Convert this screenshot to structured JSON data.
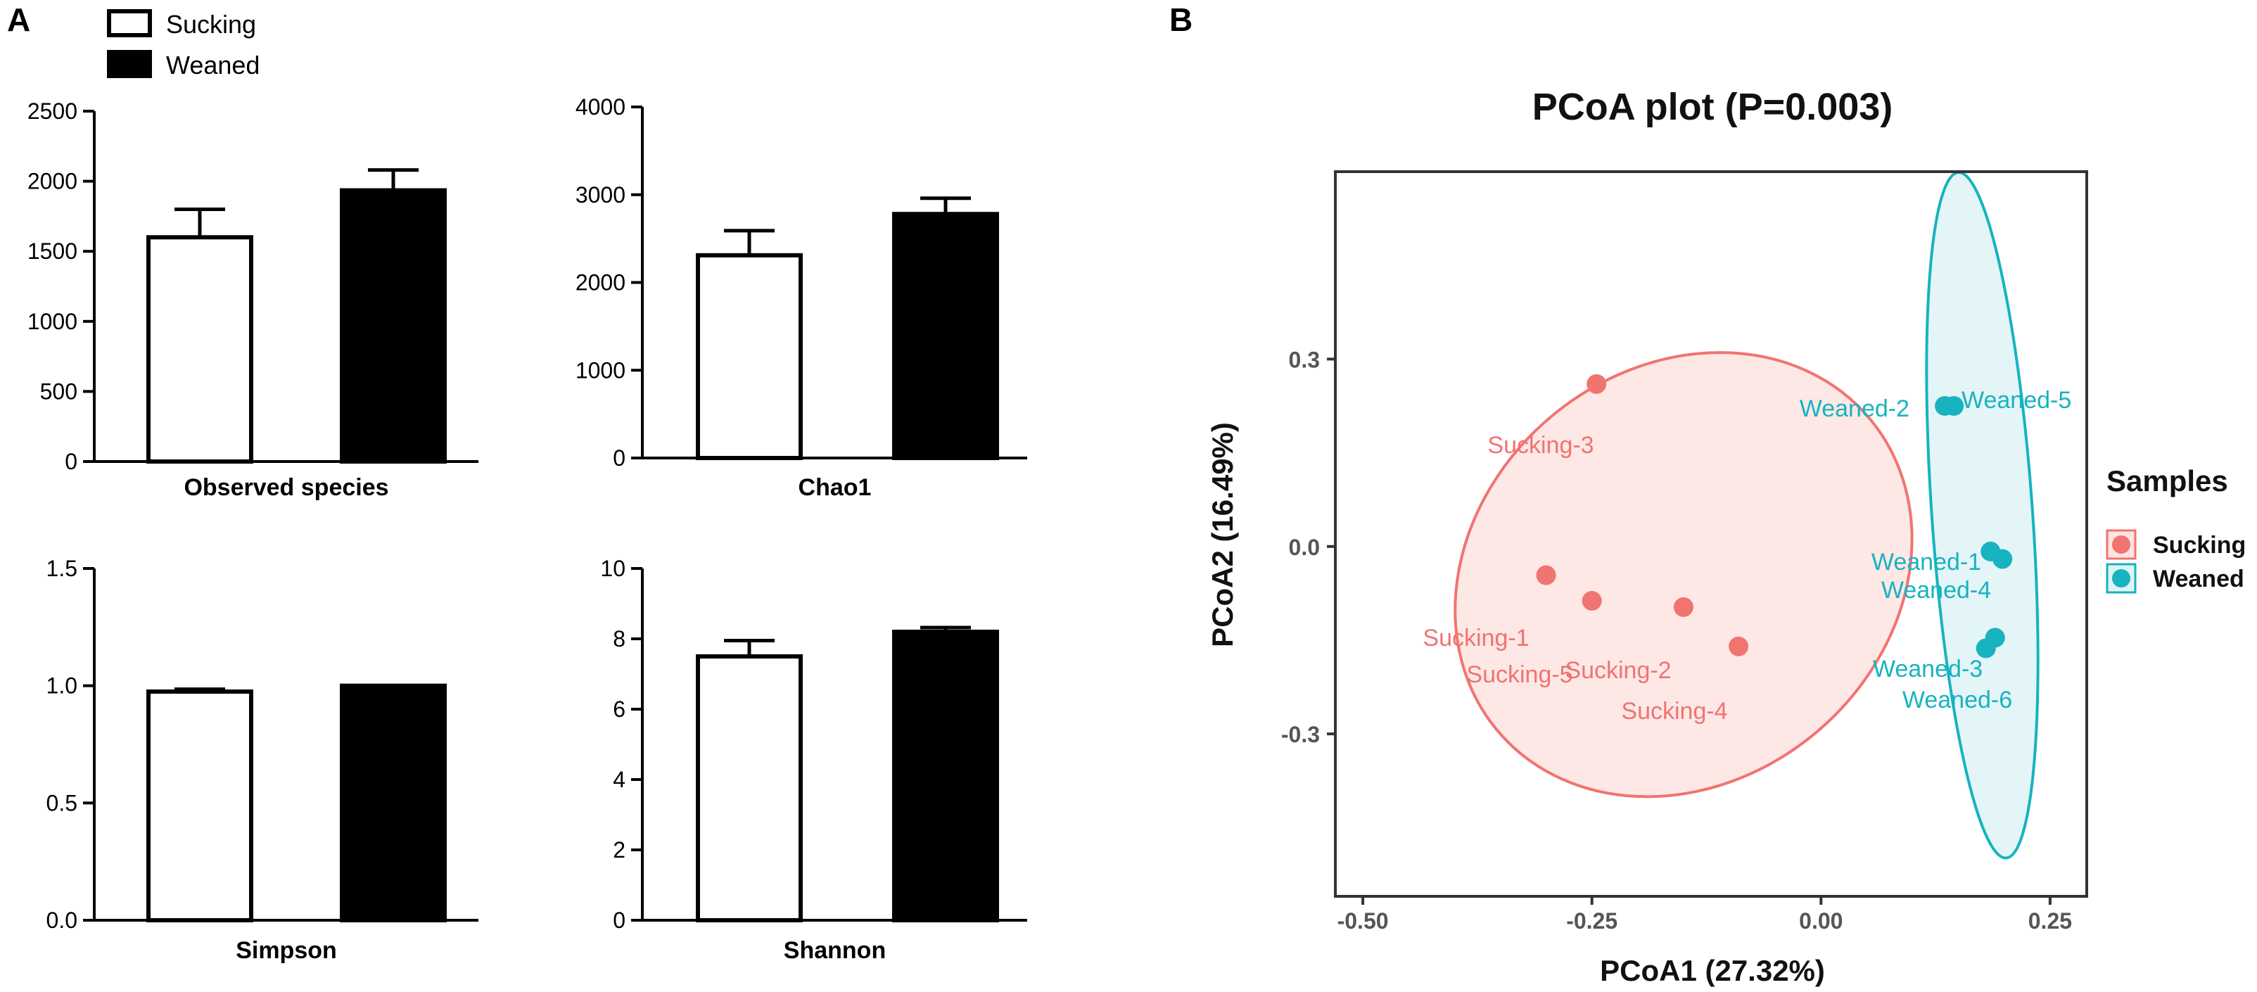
{
  "panel_a": {
    "label": "A",
    "legend": [
      {
        "name": "Sucking",
        "fill": "#ffffff"
      },
      {
        "name": "Weaned",
        "fill": "#000000"
      }
    ]
  },
  "panel_b": {
    "label": "B"
  },
  "chart_data": [
    {
      "type": "bar",
      "title": "Observed species",
      "categories": [
        "Sucking",
        "Weaned"
      ],
      "values": [
        1600,
        1935
      ],
      "errors": [
        200,
        145
      ],
      "ylim": [
        0,
        2500
      ],
      "yticks": [
        "0",
        "500",
        "1000",
        "1500",
        "2000",
        "2500"
      ],
      "xlabel": "Observed species"
    },
    {
      "type": "bar",
      "title": "Chao1",
      "categories": [
        "Sucking",
        "Weaned"
      ],
      "values": [
        2310,
        2780
      ],
      "errors": [
        280,
        180
      ],
      "ylim": [
        0,
        4000
      ],
      "yticks": [
        "0",
        "1000",
        "2000",
        "3000",
        "4000"
      ],
      "xlabel": "Chao1"
    },
    {
      "type": "bar",
      "title": "Simpson",
      "categories": [
        "Sucking",
        "Weaned"
      ],
      "values": [
        0.975,
        1.0
      ],
      "errors": [
        0.01,
        0
      ],
      "ylim": [
        0,
        1.5
      ],
      "yticks": [
        "0.0",
        "0.5",
        "1.0",
        "1.5"
      ],
      "xlabel": "Simpson"
    },
    {
      "type": "bar",
      "title": "Shannon",
      "categories": [
        "Sucking",
        "Weaned"
      ],
      "values": [
        7.5,
        8.2
      ],
      "errors": [
        0.45,
        0.12
      ],
      "ylim": [
        0,
        10
      ],
      "yticks": [
        "0",
        "2",
        "4",
        "6",
        "8",
        "10"
      ],
      "xlabel": "Shannon"
    },
    {
      "type": "scatter",
      "title": "PCoA plot (P=0.003)",
      "xlabel": "PCoA1 (27.32%)",
      "ylabel": "PCoA2 (16.49%)",
      "xlim": [
        -0.53,
        0.29
      ],
      "ylim": [
        -0.56,
        0.6
      ],
      "xticks": [
        -0.5,
        -0.25,
        0.0,
        0.25
      ],
      "xtick_labels": [
        "-0.50",
        "-0.25",
        "0.00",
        "0.25"
      ],
      "yticks": [
        -0.3,
        0.0,
        0.3
      ],
      "ytick_labels": [
        "-0.3",
        "0.0",
        "0.3"
      ],
      "legend_title": "Samples",
      "series": [
        {
          "name": "Sucking",
          "color": "#f07470",
          "ellipse_fill": "#fde4e2",
          "points": [
            {
              "label": "Sucking-3",
              "x": -0.245,
              "y": 0.26
            },
            {
              "label": "Sucking-1",
              "x": -0.3,
              "y": -0.046
            },
            {
              "label": "Sucking-5",
              "x": -0.25,
              "y": -0.087
            },
            {
              "label": "Sucking-2",
              "x": -0.15,
              "y": -0.097
            },
            {
              "label": "Sucking-4",
              "x": -0.09,
              "y": -0.16
            }
          ]
        },
        {
          "name": "Weaned",
          "color": "#17b3bf",
          "ellipse_fill": "#dff3f6",
          "points": [
            {
              "label": "Weaned-2",
              "x": 0.135,
              "y": 0.225
            },
            {
              "label": "Weaned-5",
              "x": 0.145,
              "y": 0.225
            },
            {
              "label": "Weaned-1",
              "x": 0.185,
              "y": -0.008
            },
            {
              "label": "Weaned-4",
              "x": 0.198,
              "y": -0.02
            },
            {
              "label": "Weaned-3",
              "x": 0.18,
              "y": -0.163
            },
            {
              "label": "Weaned-6",
              "x": 0.19,
              "y": -0.146
            }
          ]
        }
      ]
    }
  ]
}
